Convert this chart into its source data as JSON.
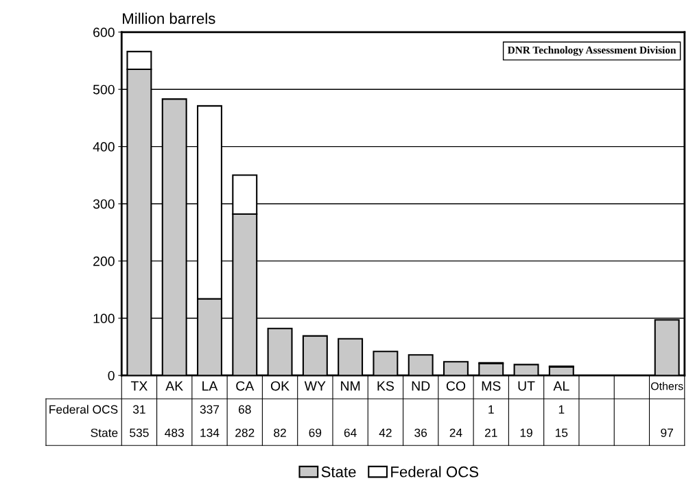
{
  "chart_data": {
    "type": "bar",
    "stacked": true,
    "ylabel": "Million barrels",
    "categories": [
      "TX",
      "AK",
      "LA",
      "CA",
      "OK",
      "WY",
      "NM",
      "KS",
      "ND",
      "CO",
      "MS",
      "UT",
      "AL",
      null,
      null,
      "Others"
    ],
    "series": [
      {
        "name": "State",
        "color": "#c8c8c8",
        "values": [
          535,
          483,
          134,
          282,
          82,
          69,
          64,
          42,
          36,
          24,
          21,
          19,
          15,
          null,
          null,
          97
        ]
      },
      {
        "name": "Federal OCS",
        "color": "#ffffff",
        "values": [
          31,
          null,
          337,
          68,
          null,
          null,
          null,
          null,
          null,
          null,
          1,
          null,
          1,
          null,
          null,
          null
        ]
      }
    ],
    "ylim": [
      0,
      600
    ],
    "yticks": [
      0,
      100,
      200,
      300,
      400,
      500,
      600
    ],
    "grid": "y",
    "legend": "bottom",
    "data_labels": true,
    "annotations": [
      "DNR Technology Assessment Division"
    ]
  }
}
